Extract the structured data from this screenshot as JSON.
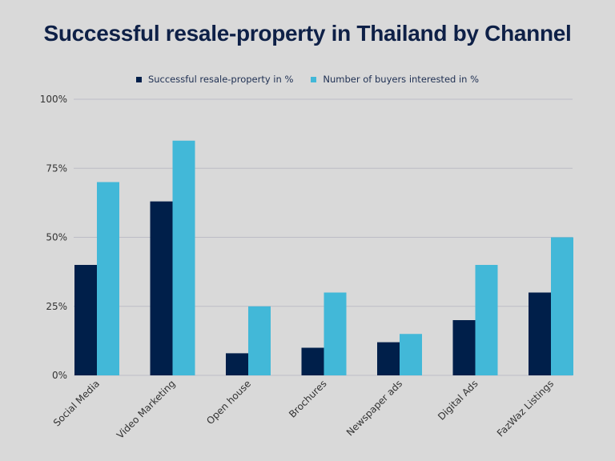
{
  "chart_data": {
    "type": "bar",
    "title": "Successful resale-property in Thailand by Channel",
    "categories": [
      "Social Media",
      "Video Marketing",
      "Open house",
      "Brochures",
      "Newspaper ads",
      "Digital Ads",
      "FazWaz Listings"
    ],
    "series": [
      {
        "name": "Successful resale-property in %",
        "color": "#001f4a",
        "values": [
          40,
          63,
          8,
          10,
          12,
          20,
          30
        ]
      },
      {
        "name": "Number of buyers interested in %",
        "color": "#42b8d8",
        "values": [
          70,
          85,
          25,
          30,
          15,
          40,
          50
        ]
      }
    ],
    "ylim": [
      0,
      100
    ],
    "yticks": [
      0,
      25,
      50,
      75,
      100
    ],
    "ytick_labels": [
      "0%",
      "25%",
      "50%",
      "75%",
      "100%"
    ],
    "grid": true,
    "legend": "top-center",
    "xlabel": "",
    "ylabel": ""
  }
}
